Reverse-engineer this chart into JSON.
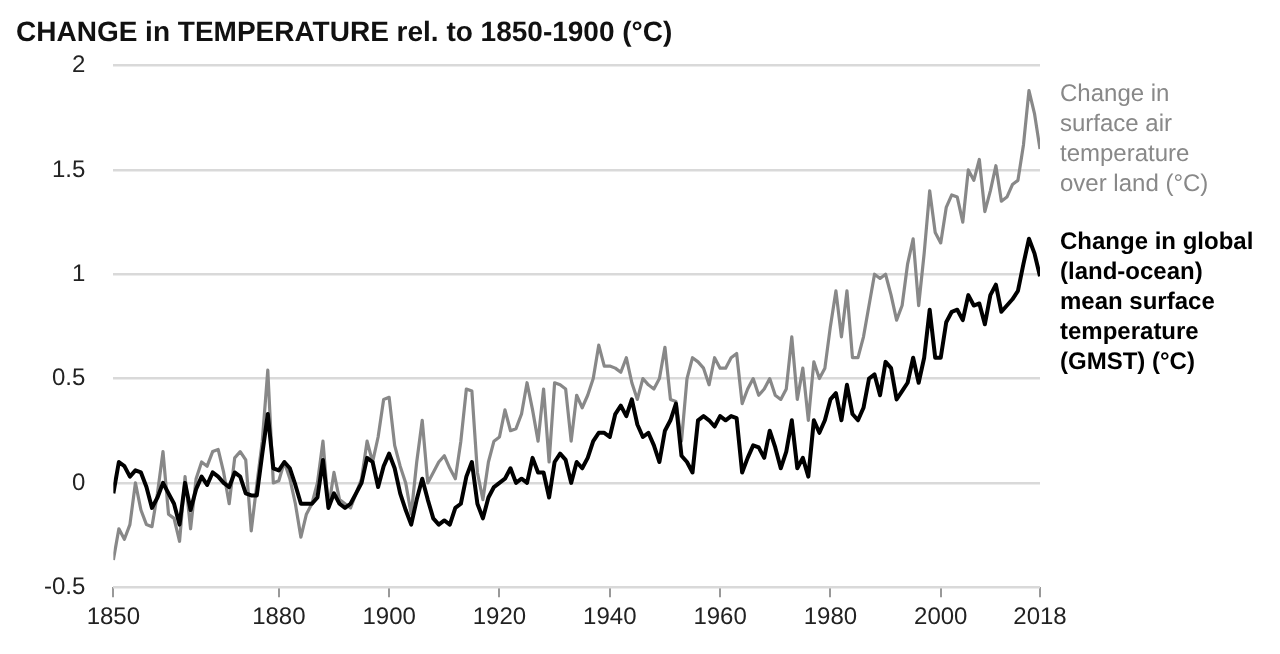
{
  "chart_data": {
    "type": "line",
    "title": "CHANGE in TEMPERATURE rel. to 1850-1900 (°C)",
    "x": [
      1850,
      1851,
      1852,
      1853,
      1854,
      1855,
      1856,
      1857,
      1858,
      1859,
      1860,
      1861,
      1862,
      1863,
      1864,
      1865,
      1866,
      1867,
      1868,
      1869,
      1870,
      1871,
      1872,
      1873,
      1874,
      1875,
      1876,
      1877,
      1878,
      1879,
      1880,
      1881,
      1882,
      1883,
      1884,
      1885,
      1886,
      1887,
      1888,
      1889,
      1890,
      1891,
      1892,
      1893,
      1894,
      1895,
      1896,
      1897,
      1898,
      1899,
      1900,
      1901,
      1902,
      1903,
      1904,
      1905,
      1906,
      1907,
      1908,
      1909,
      1910,
      1911,
      1912,
      1913,
      1914,
      1915,
      1916,
      1917,
      1918,
      1919,
      1920,
      1921,
      1922,
      1923,
      1924,
      1925,
      1926,
      1927,
      1928,
      1929,
      1930,
      1931,
      1932,
      1933,
      1934,
      1935,
      1936,
      1937,
      1938,
      1939,
      1940,
      1941,
      1942,
      1943,
      1944,
      1945,
      1946,
      1947,
      1948,
      1949,
      1950,
      1951,
      1952,
      1953,
      1954,
      1955,
      1956,
      1957,
      1958,
      1959,
      1960,
      1961,
      1962,
      1963,
      1964,
      1965,
      1966,
      1967,
      1968,
      1969,
      1970,
      1971,
      1972,
      1973,
      1974,
      1975,
      1976,
      1977,
      1978,
      1979,
      1980,
      1981,
      1982,
      1983,
      1984,
      1985,
      1986,
      1987,
      1988,
      1989,
      1990,
      1991,
      1992,
      1993,
      1994,
      1995,
      1996,
      1997,
      1998,
      1999,
      2000,
      2001,
      2002,
      2003,
      2004,
      2005,
      2006,
      2007,
      2008,
      2009,
      2010,
      2011,
      2012,
      2013,
      2014,
      2015,
      2016,
      2017,
      2018
    ],
    "series": [
      {
        "name": "Change in surface air temperature over land (°C)",
        "color": "#888888",
        "values": [
          -0.37,
          -0.22,
          -0.27,
          -0.2,
          0.0,
          -0.13,
          -0.2,
          -0.21,
          -0.05,
          0.15,
          -0.15,
          -0.17,
          -0.28,
          0.03,
          -0.22,
          0.02,
          0.1,
          0.08,
          0.15,
          0.16,
          0.05,
          -0.1,
          0.12,
          0.15,
          0.11,
          -0.23,
          -0.01,
          0.2,
          0.54,
          0.0,
          0.01,
          0.1,
          0.02,
          -0.1,
          -0.26,
          -0.15,
          -0.1,
          0.0,
          0.2,
          -0.12,
          0.05,
          -0.08,
          -0.1,
          -0.12,
          -0.05,
          0.02,
          0.2,
          0.1,
          0.22,
          0.4,
          0.41,
          0.18,
          0.08,
          0.0,
          -0.15,
          0.1,
          0.3,
          0.0,
          0.05,
          0.1,
          0.13,
          0.07,
          0.02,
          0.2,
          0.45,
          0.44,
          0.05,
          -0.08,
          0.1,
          0.2,
          0.22,
          0.35,
          0.25,
          0.26,
          0.33,
          0.48,
          0.35,
          0.2,
          0.45,
          0.1,
          0.48,
          0.47,
          0.45,
          0.2,
          0.42,
          0.36,
          0.42,
          0.5,
          0.66,
          0.56,
          0.56,
          0.55,
          0.53,
          0.6,
          0.48,
          0.4,
          0.5,
          0.47,
          0.45,
          0.5,
          0.65,
          0.4,
          0.39,
          0.2,
          0.5,
          0.6,
          0.58,
          0.55,
          0.47,
          0.6,
          0.55,
          0.55,
          0.6,
          0.62,
          0.38,
          0.45,
          0.5,
          0.42,
          0.45,
          0.5,
          0.42,
          0.4,
          0.45,
          0.7,
          0.4,
          0.55,
          0.3,
          0.58,
          0.5,
          0.55,
          0.75,
          0.92,
          0.7,
          0.92,
          0.6,
          0.6,
          0.7,
          0.85,
          1.0,
          0.98,
          1.0,
          0.9,
          0.78,
          0.85,
          1.05,
          1.17,
          0.85,
          1.1,
          1.4,
          1.2,
          1.15,
          1.32,
          1.38,
          1.37,
          1.25,
          1.5,
          1.45,
          1.55,
          1.3,
          1.4,
          1.52,
          1.35,
          1.37,
          1.43,
          1.45,
          1.62,
          1.88,
          1.77,
          1.6
        ]
      },
      {
        "name": "Change in global (land-ocean) mean surface temperature (GMST) (°C)",
        "color": "#000000",
        "values": [
          -0.05,
          0.1,
          0.08,
          0.03,
          0.06,
          0.05,
          -0.02,
          -0.12,
          -0.07,
          0.0,
          -0.05,
          -0.1,
          -0.2,
          0.0,
          -0.13,
          -0.03,
          0.03,
          -0.01,
          0.05,
          0.03,
          0.0,
          -0.02,
          0.05,
          0.03,
          -0.05,
          -0.06,
          -0.06,
          0.14,
          0.33,
          0.07,
          0.06,
          0.1,
          0.07,
          -0.01,
          -0.1,
          -0.1,
          -0.1,
          -0.07,
          0.11,
          -0.12,
          -0.05,
          -0.1,
          -0.12,
          -0.1,
          -0.05,
          0.0,
          0.12,
          0.1,
          -0.02,
          0.08,
          0.14,
          0.07,
          -0.05,
          -0.13,
          -0.2,
          -0.08,
          0.02,
          -0.08,
          -0.17,
          -0.2,
          -0.18,
          -0.2,
          -0.12,
          -0.1,
          0.03,
          0.1,
          -0.1,
          -0.17,
          -0.07,
          -0.02,
          0.0,
          0.02,
          0.07,
          0.0,
          0.02,
          0.0,
          0.12,
          0.05,
          0.05,
          -0.07,
          0.1,
          0.14,
          0.11,
          0.0,
          0.1,
          0.07,
          0.12,
          0.2,
          0.24,
          0.24,
          0.22,
          0.33,
          0.37,
          0.32,
          0.4,
          0.28,
          0.22,
          0.24,
          0.18,
          0.1,
          0.25,
          0.3,
          0.38,
          0.13,
          0.1,
          0.05,
          0.3,
          0.32,
          0.3,
          0.27,
          0.32,
          0.3,
          0.32,
          0.31,
          0.05,
          0.12,
          0.18,
          0.17,
          0.12,
          0.25,
          0.17,
          0.07,
          0.15,
          0.3,
          0.07,
          0.12,
          0.03,
          0.3,
          0.24,
          0.3,
          0.4,
          0.43,
          0.3,
          0.47,
          0.33,
          0.3,
          0.36,
          0.5,
          0.52,
          0.42,
          0.58,
          0.55,
          0.4,
          0.44,
          0.48,
          0.6,
          0.48,
          0.6,
          0.83,
          0.6,
          0.6,
          0.77,
          0.82,
          0.83,
          0.78,
          0.9,
          0.85,
          0.86,
          0.76,
          0.9,
          0.95,
          0.82,
          0.85,
          0.88,
          0.92,
          1.05,
          1.17,
          1.1,
          0.99
        ]
      }
    ],
    "xlim": [
      1850,
      2018
    ],
    "xticks": [
      1850,
      1880,
      1900,
      1920,
      1940,
      1960,
      1980,
      2000,
      2018
    ],
    "ylim": [
      -0.5,
      2
    ],
    "yticks": [
      {
        "value": -0.5,
        "label": "-0.5"
      },
      {
        "value": 0,
        "label": "0"
      },
      {
        "value": 0.5,
        "label": "0.5"
      },
      {
        "value": 1,
        "label": "1"
      },
      {
        "value": 1.5,
        "label": "1.5"
      },
      {
        "value": 2,
        "label": "2"
      }
    ],
    "grid": "y",
    "legend": false,
    "marker": "none",
    "line_style": "solid"
  }
}
